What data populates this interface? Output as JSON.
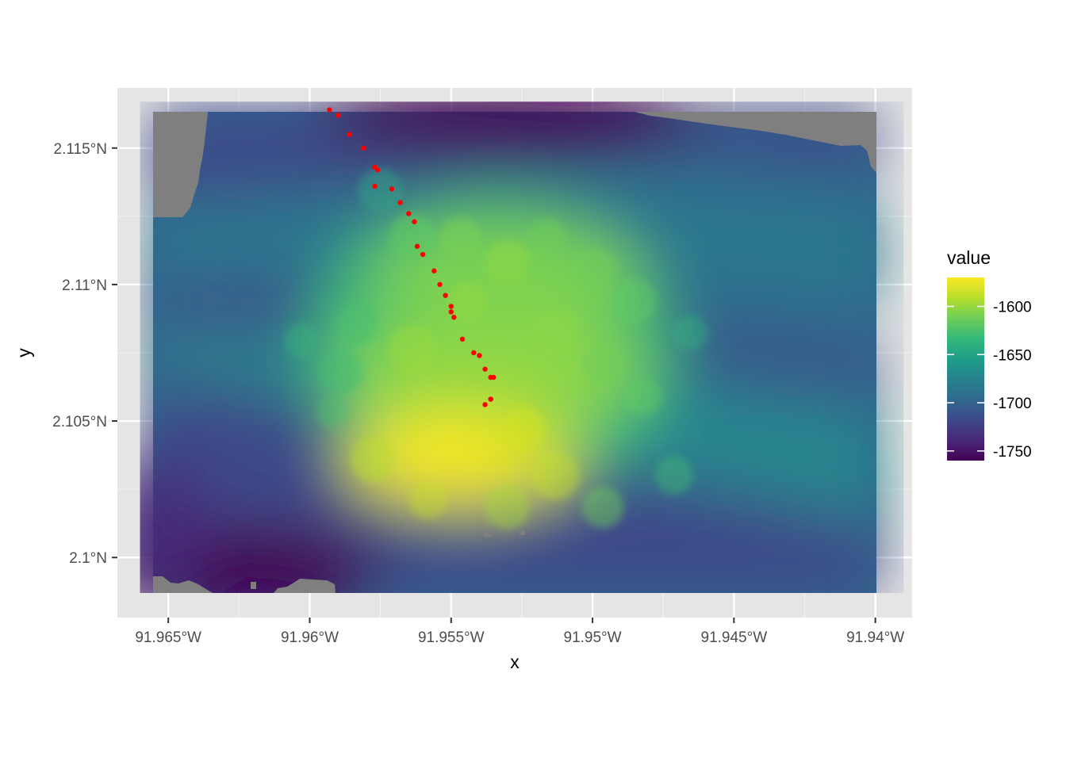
{
  "chart_data": {
    "type": "heatmap",
    "title": "",
    "xlabel": "x",
    "ylabel": "y",
    "xlim": [
      -91.9668,
      -91.9387
    ],
    "ylim": [
      2.0978,
      2.1172
    ],
    "raster_extent": {
      "x": [
        -91.966,
        -91.939
      ],
      "y": [
        2.0987,
        2.1167
      ]
    },
    "x_ticks": [
      {
        "value": -91.965,
        "label": "91.965°W"
      },
      {
        "value": -91.96,
        "label": "91.96°W"
      },
      {
        "value": -91.955,
        "label": "91.955°W"
      },
      {
        "value": -91.95,
        "label": "91.95°W"
      },
      {
        "value": -91.945,
        "label": "91.945°W"
      },
      {
        "value": -91.94,
        "label": "91.94°W"
      }
    ],
    "y_ticks": [
      {
        "value": 2.1,
        "label": "2.1°N"
      },
      {
        "value": 2.105,
        "label": "2.105°N"
      },
      {
        "value": 2.11,
        "label": "2.11°N"
      },
      {
        "value": 2.115,
        "label": "2.115°N"
      }
    ],
    "legend": {
      "title": "value",
      "placement": "right",
      "range": [
        -1760,
        -1570
      ],
      "breaks": [
        {
          "value": -1600,
          "label": "-1600"
        },
        {
          "value": -1650,
          "label": "-1650"
        },
        {
          "value": -1700,
          "label": "-1700"
        },
        {
          "value": -1750,
          "label": "-1750"
        }
      ],
      "colors": [
        "#440154",
        "#482878",
        "#3e4989",
        "#31688e",
        "#26828e",
        "#1f9e89",
        "#35b779",
        "#6ece58",
        "#b5de2b",
        "#fde725"
      ]
    },
    "na_color": "#7f7f7f",
    "panel_background": "#e5e5e5",
    "grid": true,
    "points": {
      "color": "#ff0000",
      "x": [
        -91.9593,
        -91.959,
        -91.9586,
        -91.9581,
        -91.9577,
        -91.9576,
        -91.9577,
        -91.9571,
        -91.9568,
        -91.9565,
        -91.9563,
        -91.9562,
        -91.956,
        -91.9556,
        -91.9554,
        -91.9552,
        -91.955,
        -91.955,
        -91.9549,
        -91.9546,
        -91.9542,
        -91.954,
        -91.9538,
        -91.9536,
        -91.9535,
        -91.9536,
        -91.9538,
        -91.9536
      ],
      "y": [
        2.1164,
        2.1162,
        2.1155,
        2.115,
        2.1143,
        2.1142,
        2.1136,
        2.1135,
        2.113,
        2.1126,
        2.1123,
        2.1114,
        2.1111,
        2.1105,
        2.11,
        2.1096,
        2.1092,
        2.109,
        2.1088,
        2.108,
        2.1075,
        2.1074,
        2.1069,
        2.1066,
        2.1066,
        2.1058,
        2.1056,
        2.1058
      ]
    }
  }
}
